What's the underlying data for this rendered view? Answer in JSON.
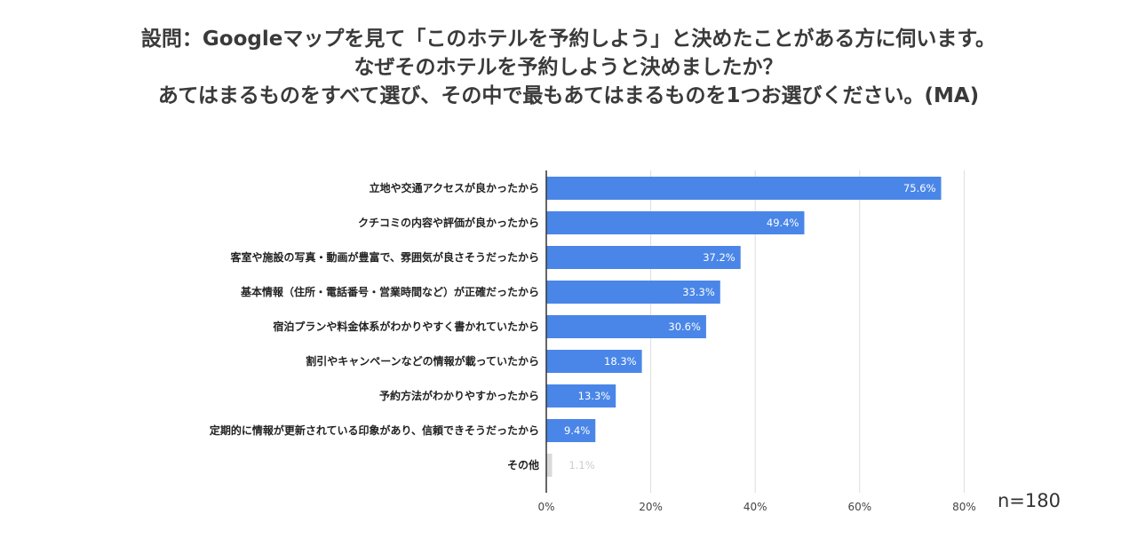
{
  "title_lines": [
    "設問：Googleマップを見て「このホテルを予約しよう」と決めたことがある方に伺います。",
    "なぜそのホテルを予約しようと決めましたか？",
    "あてはまるものをすべて選び、その中で最もあてはまるものを1つお選びください。(MA)"
  ],
  "sample_size": "n=180",
  "chart_data": {
    "type": "bar",
    "orientation": "horizontal",
    "categories": [
      "立地や交通アクセスが良かったから",
      "クチコミの内容や評価が良かったから",
      "客室や施設の写真・動画が豊富で、雰囲気が良さそうだったから",
      "基本情報（住所・電話番号・営業時間など）が正確だったから",
      "宿泊プランや料金体系がわかりやすく書かれていたから",
      "割引やキャンペーンなどの情報が載っていたから",
      "予約方法がわかりやすかったから",
      "定期的に情報が更新されている印象があり、信頼できそうだったから",
      "その他"
    ],
    "values": [
      75.6,
      49.4,
      37.2,
      33.3,
      30.6,
      18.3,
      13.3,
      9.4,
      1.1
    ],
    "value_labels": [
      "75.6%",
      "49.4%",
      "37.2%",
      "33.3%",
      "30.6%",
      "18.3%",
      "13.3%",
      "9.4%",
      "1.1%"
    ],
    "xticks": [
      "0%",
      "20%",
      "40%",
      "60%",
      "80%"
    ],
    "xlim": [
      0,
      80
    ],
    "grid": true,
    "colors": {
      "bar": "#4a86e8",
      "other_bar": "#d9d9d9",
      "grid": "#dddddd",
      "axis": "#333333"
    }
  }
}
